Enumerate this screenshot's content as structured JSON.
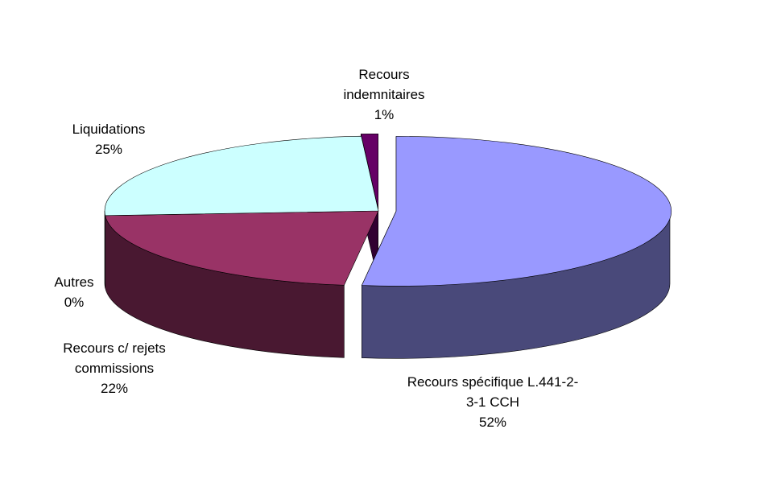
{
  "chart_data": {
    "type": "pie3d",
    "categories": [
      "Recours spécifique L.441-2-3-1 CCH",
      "Recours c/ rejets commissions",
      "Autres",
      "Liquidations",
      "Recours indemnitaires"
    ],
    "values": [
      52,
      22,
      0,
      25,
      1
    ],
    "value_labels": [
      "52%",
      "22%",
      "0%",
      "25%",
      "1%"
    ],
    "colors": [
      "#9999ff",
      "#993366",
      "#ffffcc",
      "#ccffff",
      "#660066"
    ]
  }
}
